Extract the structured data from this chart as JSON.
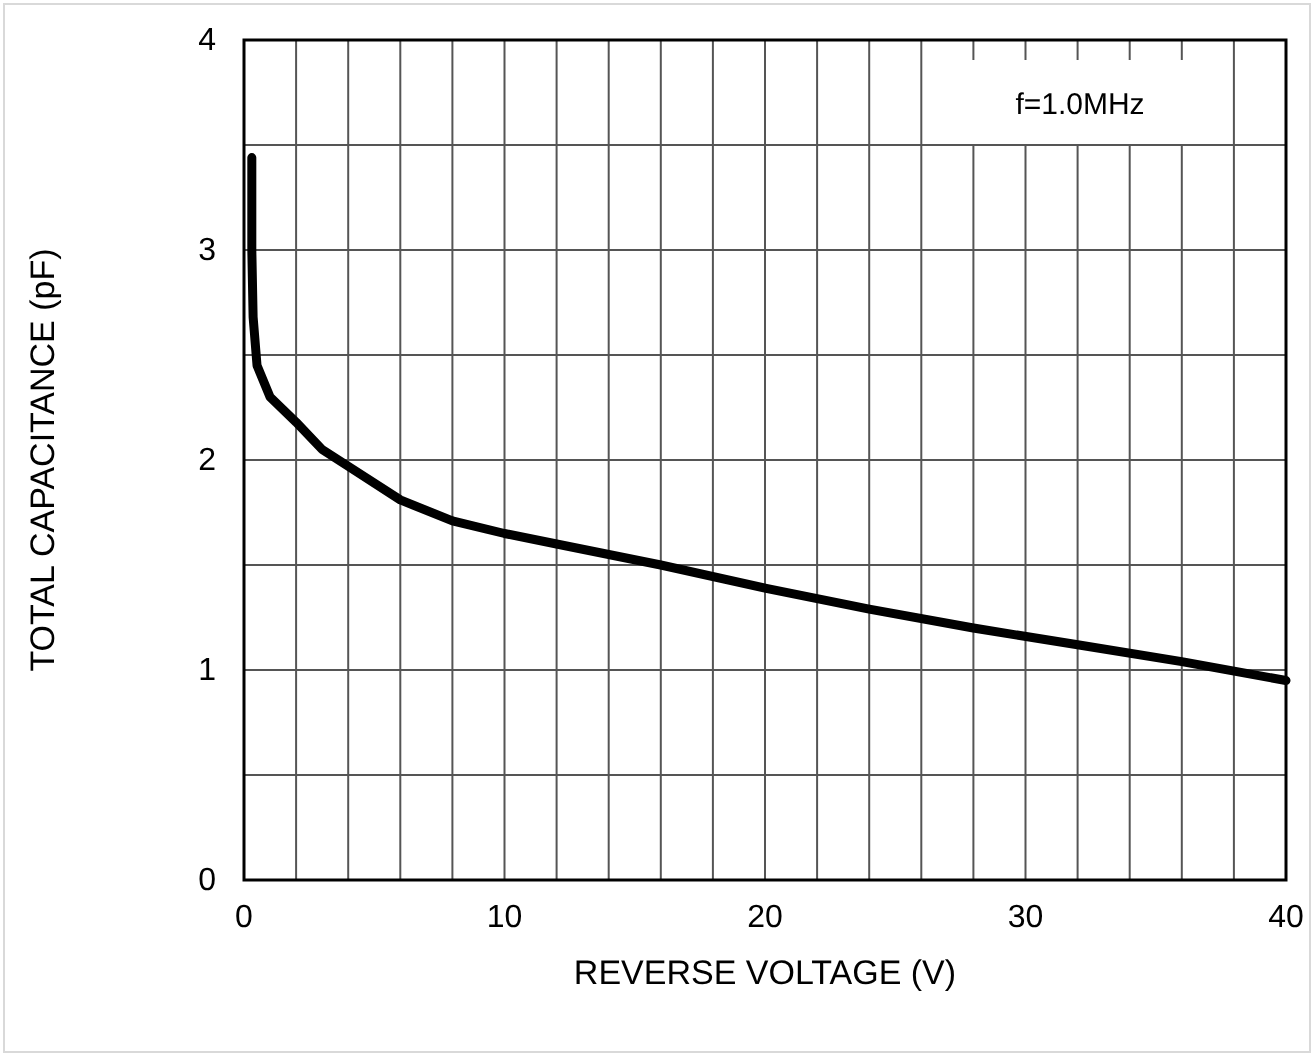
{
  "chart_data": {
    "type": "line",
    "xlabel": "REVERSE VOLTAGE (V)",
    "ylabel": "TOTAL CAPACITANCE (pF)",
    "annotations": [
      "f=1.0MHz"
    ],
    "x": [
      0.3,
      0.3,
      0.35,
      0.5,
      1,
      2,
      3,
      4,
      6,
      8,
      10,
      12,
      14,
      16,
      20,
      24,
      28,
      32,
      36,
      40
    ],
    "series": [
      {
        "color": "#000000",
        "values": [
          3.44,
          3.0,
          2.68,
          2.45,
          2.3,
          2.18,
          2.05,
          1.97,
          1.81,
          1.71,
          1.65,
          1.6,
          1.55,
          1.5,
          1.39,
          1.29,
          1.2,
          1.12,
          1.04,
          0.95
        ]
      }
    ],
    "xlim": [
      0,
      40
    ],
    "ylim": [
      0,
      4
    ],
    "xticks": [
      0,
      {
        "value": 2,
        "label": null
      },
      {
        "value": 4,
        "label": null
      },
      {
        "value": 6,
        "label": null
      },
      {
        "value": 8,
        "label": null
      },
      10,
      {
        "value": 12,
        "label": null
      },
      {
        "value": 14,
        "label": null
      },
      {
        "value": 16,
        "label": null
      },
      {
        "value": 18,
        "label": null
      },
      20,
      {
        "value": 22,
        "label": null
      },
      {
        "value": 24,
        "label": null
      },
      {
        "value": 26,
        "label": null
      },
      {
        "value": 28,
        "label": null
      },
      30,
      {
        "value": 32,
        "label": null
      },
      {
        "value": 34,
        "label": null
      },
      {
        "value": 36,
        "label": null
      },
      {
        "value": 38,
        "label": null
      },
      40
    ],
    "yticks": [
      0,
      {
        "value": 0.5,
        "label": null
      },
      1,
      {
        "value": 1.5,
        "label": null
      },
      2,
      {
        "value": 2.5,
        "label": null
      },
      3,
      {
        "value": 3.5,
        "label": null
      },
      4
    ],
    "grid": true,
    "line_style": "solid",
    "marker": "none"
  }
}
